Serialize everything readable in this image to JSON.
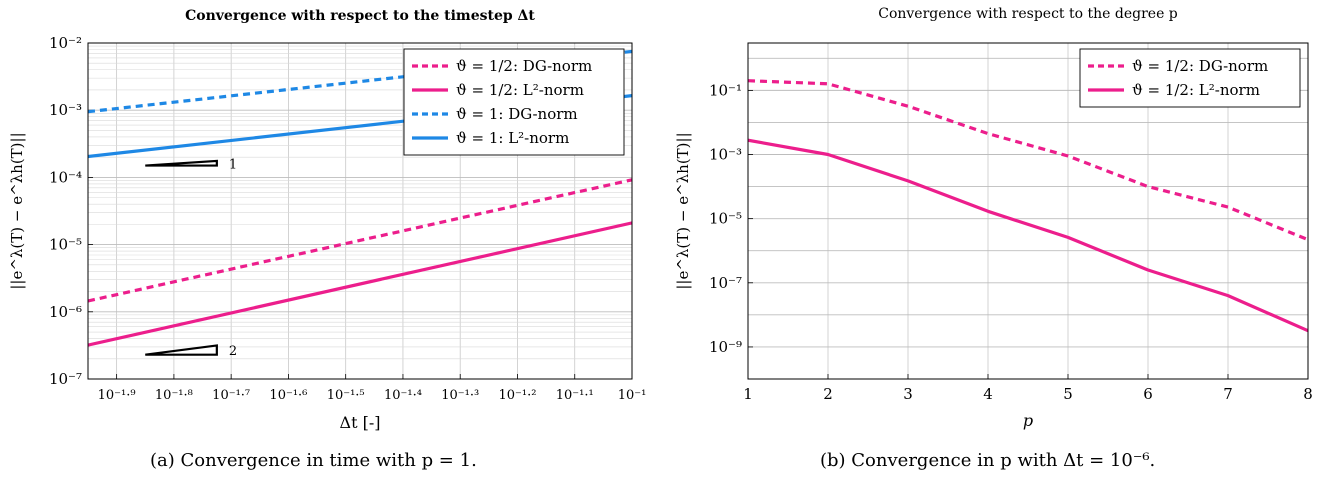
{
  "figure": {
    "caption_a": "(a) Convergence in time with p = 1.",
    "caption_b": "(b) Convergence in p with Δt = 10⁻⁶."
  },
  "chart_data": [
    {
      "type": "line",
      "title": "Convergence with respect to the timestep Δt",
      "xlabel": "Δt [-]",
      "ylabel": "||e^λ(T) − e^λh(T)||",
      "x_scale": "linear (axis shows exponents of 10)",
      "y_scale": "log",
      "xlim": [
        -1.95,
        -1.0
      ],
      "ylim": [
        1e-07,
        0.01
      ],
      "grid": true,
      "legend_position": "top-right",
      "x_ticks": [
        {
          "v": -1.9,
          "label": "10⁻¹·⁹"
        },
        {
          "v": -1.8,
          "label": "10⁻¹·⁸"
        },
        {
          "v": -1.7,
          "label": "10⁻¹·⁷"
        },
        {
          "v": -1.6,
          "label": "10⁻¹·⁶"
        },
        {
          "v": -1.5,
          "label": "10⁻¹·⁵"
        },
        {
          "v": -1.4,
          "label": "10⁻¹·⁴"
        },
        {
          "v": -1.3,
          "label": "10⁻¹·³"
        },
        {
          "v": -1.2,
          "label": "10⁻¹·²"
        },
        {
          "v": -1.1,
          "label": "10⁻¹·¹"
        },
        {
          "v": -1.0,
          "label": "10⁻¹"
        }
      ],
      "y_ticks": [
        {
          "v": 1e-07,
          "label": "10⁻⁷"
        },
        {
          "v": 1e-06,
          "label": "10⁻⁶"
        },
        {
          "v": 1e-05,
          "label": "10⁻⁵"
        },
        {
          "v": 0.0001,
          "label": "10⁻⁴"
        },
        {
          "v": 0.001,
          "label": "10⁻³"
        },
        {
          "v": 0.01,
          "label": "10⁻²"
        }
      ],
      "series": [
        {
          "name": "ϑ = 1/2: DG-norm",
          "color": "#ec1e8c",
          "dash": true,
          "x": [
            -1.95,
            -1.0
          ],
          "y": [
            1.45e-06,
            9.2e-05
          ]
        },
        {
          "name": "ϑ = 1/2: L²-norm",
          "color": "#ec1e8c",
          "dash": false,
          "x": [
            -1.95,
            -1.0
          ],
          "y": [
            3.2e-07,
            2.1e-05
          ]
        },
        {
          "name": "ϑ = 1: DG-norm",
          "color": "#1e88e5",
          "dash": true,
          "x": [
            -1.95,
            -1.0
          ],
          "y": [
            0.00095,
            0.0075
          ]
        },
        {
          "name": "ϑ = 1: L²-norm",
          "color": "#1e88e5",
          "dash": false,
          "x": [
            -1.95,
            -1.0
          ],
          "y": [
            0.000205,
            0.00165
          ]
        }
      ],
      "slope_triangles": [
        {
          "label": "1",
          "x0": -1.85,
          "x1": -1.725,
          "y_low": 0.00015,
          "slope": 1
        },
        {
          "label": "2",
          "x0": -1.85,
          "x1": -1.725,
          "y_low": 2.3e-07,
          "slope": 2
        }
      ]
    },
    {
      "type": "line",
      "title": "Convergence with respect to the degree p",
      "xlabel": "p",
      "ylabel": "||e^λ(T) − e^λh(T)||",
      "y_scale": "log",
      "xlim": [
        1,
        8
      ],
      "ylim": [
        1e-10,
        3
      ],
      "grid": true,
      "legend_position": "top-right",
      "x_ticks": [
        {
          "v": 1,
          "label": "1"
        },
        {
          "v": 2,
          "label": "2"
        },
        {
          "v": 3,
          "label": "3"
        },
        {
          "v": 4,
          "label": "4"
        },
        {
          "v": 5,
          "label": "5"
        },
        {
          "v": 6,
          "label": "6"
        },
        {
          "v": 7,
          "label": "7"
        },
        {
          "v": 8,
          "label": "8"
        }
      ],
      "y_ticks": [
        {
          "v": 1e-09,
          "label": "10⁻⁹"
        },
        {
          "v": 1e-07,
          "label": "10⁻⁷"
        },
        {
          "v": 1e-05,
          "label": "10⁻⁵"
        },
        {
          "v": 0.001,
          "label": "10⁻³"
        },
        {
          "v": 0.1,
          "label": "10⁻¹"
        }
      ],
      "series": [
        {
          "name": "ϑ = 1/2: DG-norm",
          "color": "#ec1e8c",
          "dash": true,
          "x": [
            1,
            2,
            3,
            4,
            5,
            6,
            7,
            8
          ],
          "y": [
            0.2,
            0.16,
            0.032,
            0.0045,
            0.0009,
            0.0001,
            2.3e-05,
            2.2e-06
          ]
        },
        {
          "name": "ϑ = 1/2: L²-norm",
          "color": "#ec1e8c",
          "dash": false,
          "x": [
            1,
            2,
            3,
            4,
            5,
            6,
            7,
            8
          ],
          "y": [
            0.0028,
            0.001,
            0.00015,
            1.7e-05,
            2.6e-06,
            2.5e-07,
            4e-08,
            3.2e-09
          ]
        }
      ]
    }
  ]
}
